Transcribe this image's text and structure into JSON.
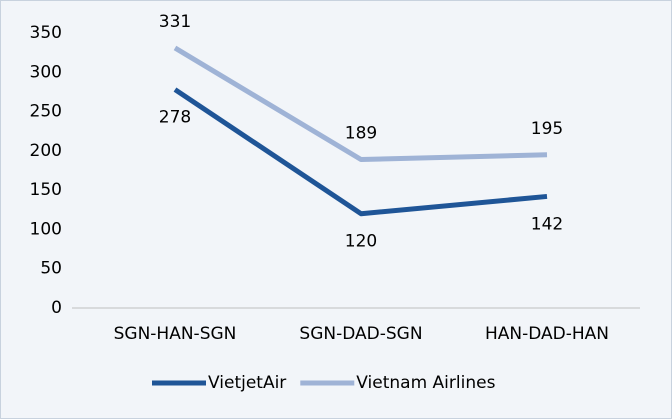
{
  "chart_data": {
    "type": "line",
    "categories": [
      "SGN-HAN-SGN",
      "SGN-DAD-SGN",
      "HAN-DAD-HAN"
    ],
    "series": [
      {
        "name": "VietjetAir",
        "color": "#1f5597",
        "values": [
          278,
          120,
          142
        ]
      },
      {
        "name": "Vietnam Airlines",
        "color": "#9fb3d6",
        "values": [
          331,
          189,
          195
        ]
      }
    ],
    "ylim": [
      0,
      350
    ],
    "yticks": [
      0,
      50,
      100,
      150,
      200,
      250,
      300,
      350
    ],
    "grid": false,
    "legend": "bottom"
  }
}
